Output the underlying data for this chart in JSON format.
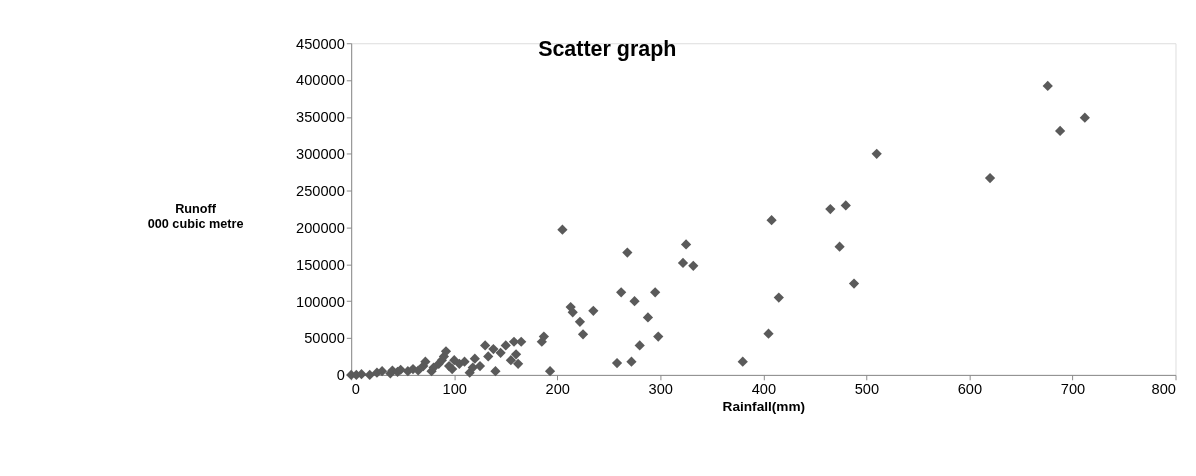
{
  "chart_data": {
    "type": "scatter",
    "title": "Scatter graph",
    "xlabel": "Rainfall(mm)",
    "ylabel": "Runoff\n000 cubic metre",
    "x": [
      0,
      5,
      10,
      18,
      25,
      30,
      38,
      40,
      45,
      48,
      55,
      60,
      65,
      70,
      72,
      78,
      80,
      85,
      88,
      90,
      92,
      95,
      98,
      100,
      105,
      110,
      115,
      118,
      120,
      125,
      130,
      133,
      138,
      140,
      145,
      150,
      155,
      158,
      160,
      162,
      165,
      185,
      187,
      193,
      205,
      213,
      215,
      222,
      225,
      235,
      258,
      262,
      268,
      272,
      275,
      280,
      288,
      295,
      298,
      322,
      325,
      332,
      380,
      405,
      408,
      415,
      465,
      474,
      480,
      488,
      510,
      620,
      676,
      688,
      712
    ],
    "values": [
      0,
      0,
      1000,
      0,
      3000,
      5000,
      2000,
      6000,
      4000,
      7000,
      5000,
      8000,
      6000,
      12000,
      18000,
      5000,
      10000,
      15000,
      20000,
      25000,
      32000,
      12000,
      8000,
      20000,
      15000,
      18000,
      3000,
      10000,
      22000,
      12000,
      40000,
      25000,
      35000,
      5000,
      30000,
      40000,
      20000,
      45000,
      28000,
      15000,
      45000,
      45000,
      52000,
      5000,
      197000,
      92000,
      85000,
      72000,
      55000,
      87000,
      16000,
      112000,
      166000,
      18000,
      100000,
      40000,
      78000,
      112000,
      52000,
      152000,
      177000,
      148000,
      18000,
      56000,
      210000,
      105000,
      225000,
      174000,
      230000,
      124000,
      300000,
      267000,
      392000,
      331000,
      349000
    ],
    "color": "#5a5a5a",
    "marker": "diamond",
    "xlim": [
      0,
      800
    ],
    "xticks": [
      0,
      100,
      200,
      300,
      400,
      500,
      600,
      700,
      800
    ],
    "ylim": [
      0,
      450000
    ],
    "yticks": [
      0,
      50000,
      100000,
      150000,
      200000,
      250000,
      300000,
      350000,
      400000,
      450000
    ],
    "grid": false
  }
}
